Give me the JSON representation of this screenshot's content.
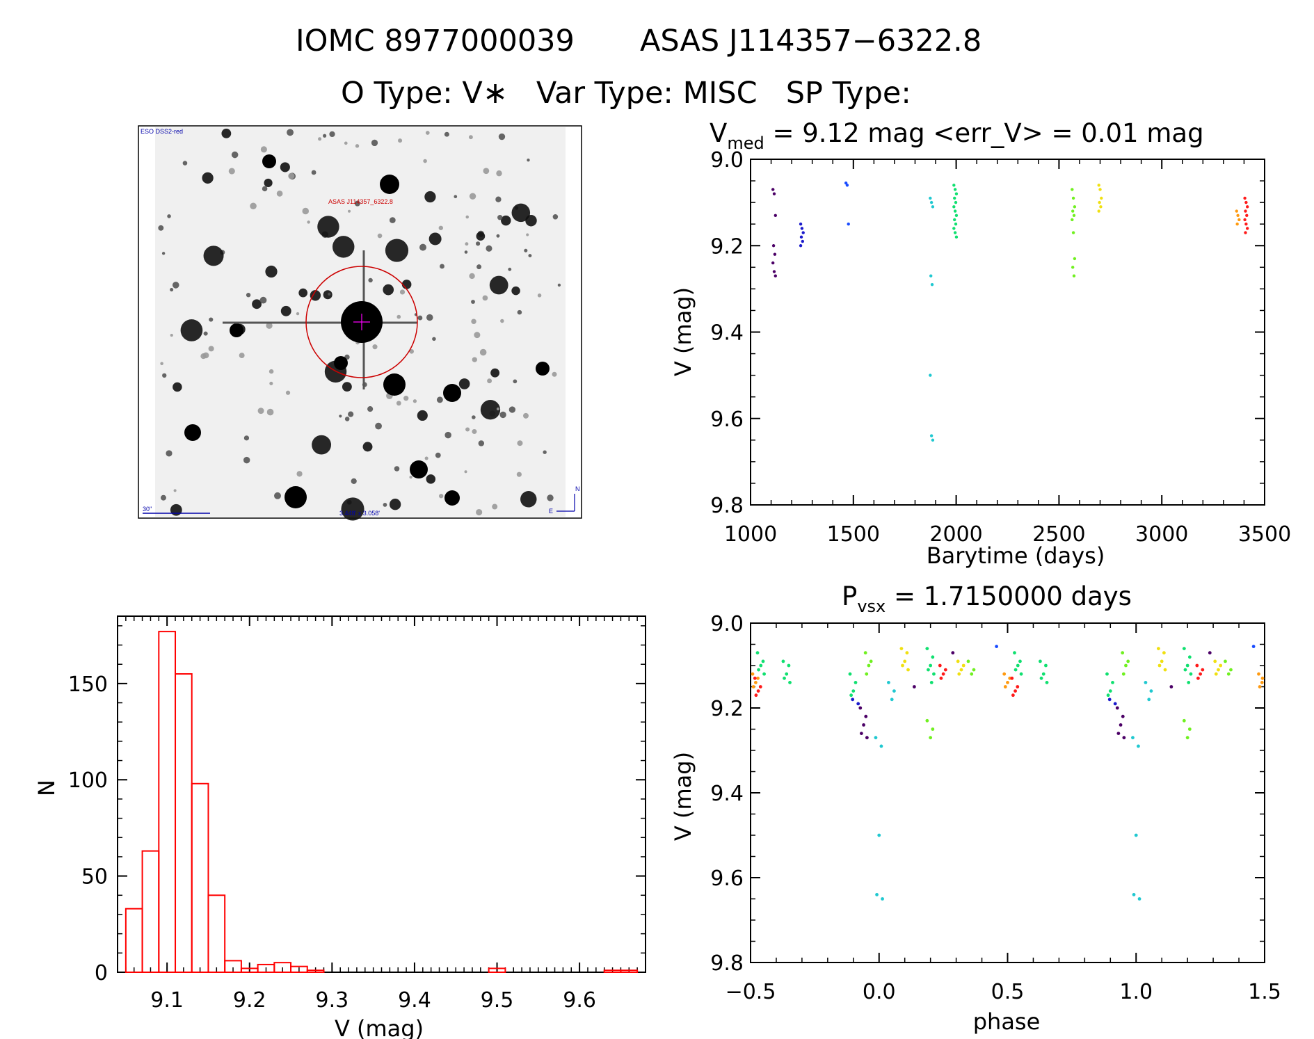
{
  "header": {
    "title_line1_left": "IOMC 8977000039",
    "title_line1_right": "ASAS J114357−6322.8",
    "title_line2": "O Type: V∗   Var Type: MISC   SP Type:"
  },
  "finder": {
    "survey_label": "ESO DSS2-red",
    "target_label": "ASAS J114357_6322.8",
    "scale_label": "30\"",
    "fov_label": "3.448' x 3.058'",
    "north_label": "N",
    "east_label": "E"
  },
  "colors": {
    "histogram": "#ff0000",
    "finder_circle": "#cc0000",
    "finder_text": "#cc0000",
    "finder_blue": "#0000aa",
    "season_palette": [
      "#4b0066",
      "#1a1acc",
      "#1a4cff",
      "#20c8d0",
      "#10e070",
      "#70f020",
      "#f0e010",
      "#ff9a10",
      "#ff1a1a",
      "#b00000"
    ]
  },
  "chart_data": [
    {
      "type": "scatter",
      "id": "lightcurve",
      "title_prefix": "V",
      "title_sub": "med",
      "title_rest": " = 9.12 mag <err_V> = 0.01 mag",
      "xlabel": "Barytime (days)",
      "ylabel": "V (mag)",
      "xlim": [
        1000,
        3500
      ],
      "ylim": [
        9.8,
        9.0
      ],
      "xticks": [
        "1000",
        "1500",
        "2000",
        "2500",
        "3000",
        "3500"
      ],
      "yticks": [
        "9.0",
        "9.2",
        "9.4",
        "9.6",
        "9.8"
      ],
      "seasons": [
        {
          "x": 1115,
          "color_index": 0,
          "values": [
            9.07,
            9.08,
            9.13,
            9.2,
            9.22,
            9.24,
            9.26,
            9.27
          ]
        },
        {
          "x": 1250,
          "color_index": 1,
          "values": [
            9.15,
            9.16,
            9.17,
            9.18,
            9.19,
            9.2
          ]
        },
        {
          "x": 1470,
          "color_index": 2,
          "values": [
            9.055,
            9.06,
            9.15
          ]
        },
        {
          "x": 1880,
          "color_index": 3,
          "values": [
            9.09,
            9.1,
            9.11,
            9.27,
            9.29,
            9.5,
            9.64,
            9.65
          ]
        },
        {
          "x": 1995,
          "color_index": 4,
          "values": [
            9.06,
            9.07,
            9.08,
            9.09,
            9.1,
            9.11,
            9.12,
            9.13,
            9.14,
            9.15,
            9.16,
            9.17,
            9.18
          ]
        },
        {
          "x": 2570,
          "color_index": 5,
          "values": [
            9.07,
            9.09,
            9.11,
            9.12,
            9.13,
            9.14,
            9.17,
            9.23,
            9.25,
            9.27
          ]
        },
        {
          "x": 2700,
          "color_index": 6,
          "values": [
            9.06,
            9.07,
            9.09,
            9.1,
            9.11,
            9.12
          ]
        },
        {
          "x": 3370,
          "color_index": 7,
          "values": [
            9.12,
            9.13,
            9.14,
            9.15
          ]
        },
        {
          "x": 3410,
          "color_index": 8,
          "values": [
            9.09,
            9.1,
            9.11,
            9.12,
            9.13,
            9.14,
            9.15,
            9.16,
            9.17
          ]
        }
      ]
    },
    {
      "type": "bar",
      "id": "histogram",
      "xlabel": "V (mag)",
      "ylabel": "N",
      "xlim": [
        9.04,
        9.68
      ],
      "ylim": [
        0,
        185
      ],
      "xticks": [
        "9.1",
        "9.2",
        "9.3",
        "9.4",
        "9.5",
        "9.6"
      ],
      "yticks": [
        "0",
        "50",
        "100",
        "150"
      ],
      "bin_width": 0.02,
      "bin_starts": [
        9.05,
        9.07,
        9.09,
        9.11,
        9.13,
        9.15,
        9.17,
        9.19,
        9.21,
        9.23,
        9.25,
        9.27,
        9.29,
        9.31,
        9.49,
        9.51,
        9.63,
        9.65
      ],
      "values": [
        33,
        63,
        177,
        155,
        98,
        40,
        6,
        2,
        4,
        5,
        3,
        1,
        0,
        0,
        2,
        0,
        1,
        1
      ]
    },
    {
      "type": "scatter",
      "id": "phased",
      "title_prefix": "P",
      "title_sub": "vsx",
      "title_rest": " = 1.7150000 days",
      "xlabel": "phase",
      "ylabel": "V (mag)",
      "xlim": [
        -0.5,
        1.5
      ],
      "ylim": [
        9.8,
        9.0
      ],
      "xticks": [
        "−0.5",
        "0.0",
        "0.5",
        "1.0",
        "1.5"
      ],
      "yticks": [
        "9.0",
        "9.2",
        "9.4",
        "9.6",
        "9.8"
      ],
      "groups": [
        {
          "phase": -0.46,
          "color_index": 4,
          "values": [
            9.07,
            9.09,
            9.1,
            9.11,
            9.12
          ]
        },
        {
          "phase": -0.48,
          "color_index": 7,
          "values": [
            9.12,
            9.13,
            9.14,
            9.15
          ]
        },
        {
          "phase": -0.47,
          "color_index": 8,
          "values": [
            9.13,
            9.15,
            9.16,
            9.17
          ]
        },
        {
          "phase": -0.36,
          "color_index": 4,
          "values": [
            9.09,
            9.1,
            9.12,
            9.13,
            9.14
          ]
        },
        {
          "phase": -0.1,
          "color_index": 4,
          "values": [
            9.12,
            9.14,
            9.16,
            9.17
          ]
        },
        {
          "phase": -0.09,
          "color_index": 1,
          "values": [
            9.18,
            9.19
          ]
        },
        {
          "phase": -0.06,
          "color_index": 0,
          "values": [
            9.2,
            9.22,
            9.24,
            9.26,
            9.27
          ]
        },
        {
          "phase": -0.04,
          "color_index": 5,
          "values": [
            9.07,
            9.09,
            9.1,
            9.12
          ]
        },
        {
          "phase": 0.0,
          "color_index": 3,
          "values": [
            9.27,
            9.29,
            9.5,
            9.64,
            9.65
          ]
        },
        {
          "phase": 0.05,
          "color_index": 3,
          "values": [
            9.14,
            9.16,
            9.18
          ]
        },
        {
          "phase": 0.1,
          "color_index": 6,
          "values": [
            9.06,
            9.07,
            9.09,
            9.1,
            9.11
          ]
        },
        {
          "phase": 0.15,
          "color_index": 0,
          "values": [
            9.15
          ]
        },
        {
          "phase": 0.2,
          "color_index": 4,
          "values": [
            9.06,
            9.08,
            9.1,
            9.11,
            9.12,
            9.14
          ]
        },
        {
          "phase": 0.2,
          "color_index": 5,
          "values": [
            9.23,
            9.25,
            9.27
          ]
        },
        {
          "phase": 0.25,
          "color_index": 8,
          "values": [
            9.1,
            9.11,
            9.12,
            9.13
          ]
        },
        {
          "phase": 0.3,
          "color_index": 0,
          "values": [
            9.07
          ]
        },
        {
          "phase": 0.32,
          "color_index": 6,
          "values": [
            9.09,
            9.1,
            9.11,
            9.12
          ]
        },
        {
          "phase": 0.36,
          "color_index": 5,
          "values": [
            9.09,
            9.11,
            9.12
          ]
        },
        {
          "phase": 0.47,
          "color_index": 2,
          "values": [
            9.055
          ]
        },
        {
          "phase": 0.5,
          "color_index": 7,
          "values": [
            9.12,
            9.13,
            9.14,
            9.15
          ]
        },
        {
          "phase": 0.53,
          "color_index": 8,
          "values": [
            9.13,
            9.15,
            9.16,
            9.17
          ]
        },
        {
          "phase": 0.54,
          "color_index": 4,
          "values": [
            9.07,
            9.09,
            9.1,
            9.11,
            9.12
          ]
        },
        {
          "phase": 0.64,
          "color_index": 4,
          "values": [
            9.09,
            9.1,
            9.12,
            9.13,
            9.14
          ]
        },
        {
          "phase": 0.9,
          "color_index": 4,
          "values": [
            9.12,
            9.14,
            9.16,
            9.17
          ]
        },
        {
          "phase": 0.91,
          "color_index": 1,
          "values": [
            9.18,
            9.19
          ]
        },
        {
          "phase": 0.94,
          "color_index": 0,
          "values": [
            9.2,
            9.22,
            9.24,
            9.26,
            9.27
          ]
        },
        {
          "phase": 0.96,
          "color_index": 5,
          "values": [
            9.07,
            9.09,
            9.1,
            9.12
          ]
        },
        {
          "phase": 1.0,
          "color_index": 3,
          "values": [
            9.27,
            9.29,
            9.5,
            9.64,
            9.65
          ]
        },
        {
          "phase": 1.05,
          "color_index": 3,
          "values": [
            9.14,
            9.16,
            9.18
          ]
        },
        {
          "phase": 1.1,
          "color_index": 6,
          "values": [
            9.06,
            9.07,
            9.09,
            9.1,
            9.11
          ]
        },
        {
          "phase": 1.15,
          "color_index": 0,
          "values": [
            9.15
          ]
        },
        {
          "phase": 1.2,
          "color_index": 4,
          "values": [
            9.06,
            9.08,
            9.1,
            9.11,
            9.12,
            9.14
          ]
        },
        {
          "phase": 1.2,
          "color_index": 5,
          "values": [
            9.23,
            9.25,
            9.27
          ]
        },
        {
          "phase": 1.25,
          "color_index": 8,
          "values": [
            9.1,
            9.11,
            9.12,
            9.13
          ]
        },
        {
          "phase": 1.3,
          "color_index": 0,
          "values": [
            9.07
          ]
        },
        {
          "phase": 1.32,
          "color_index": 6,
          "values": [
            9.09,
            9.1,
            9.11,
            9.12
          ]
        },
        {
          "phase": 1.36,
          "color_index": 5,
          "values": [
            9.09,
            9.11,
            9.12
          ]
        },
        {
          "phase": 1.47,
          "color_index": 2,
          "values": [
            9.055
          ]
        },
        {
          "phase": 1.49,
          "color_index": 7,
          "values": [
            9.12,
            9.13,
            9.14,
            9.15
          ]
        }
      ]
    }
  ]
}
